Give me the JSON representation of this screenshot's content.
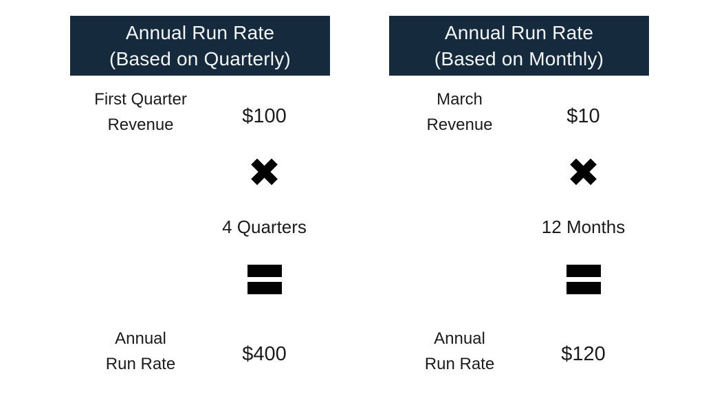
{
  "colors": {
    "header_bg": "#152A3C",
    "header_text": "#F4F6F7",
    "body_text": "#1B1B1B",
    "operator": "#000000",
    "canvas_bg": "#FFFFFF"
  },
  "icons": {
    "multiply": "✖",
    "equals": "="
  },
  "panels": [
    {
      "header_line1": "Annual Run Rate",
      "header_line2": "(Based on Quarterly)",
      "input_label_line1": "First Quarter",
      "input_label_line2": "Revenue",
      "input_value": "$100",
      "multiplier_label": "4 Quarters",
      "result_label_line1": "Annual",
      "result_label_line2": "Run Rate",
      "result_value": "$400"
    },
    {
      "header_line1": "Annual Run Rate",
      "header_line2": "(Based on Monthly)",
      "input_label_line1": "March",
      "input_label_line2": "Revenue",
      "input_value": "$10",
      "multiplier_label": "12 Months",
      "result_label_line1": "Annual",
      "result_label_line2": "Run Rate",
      "result_value": "$120"
    }
  ]
}
